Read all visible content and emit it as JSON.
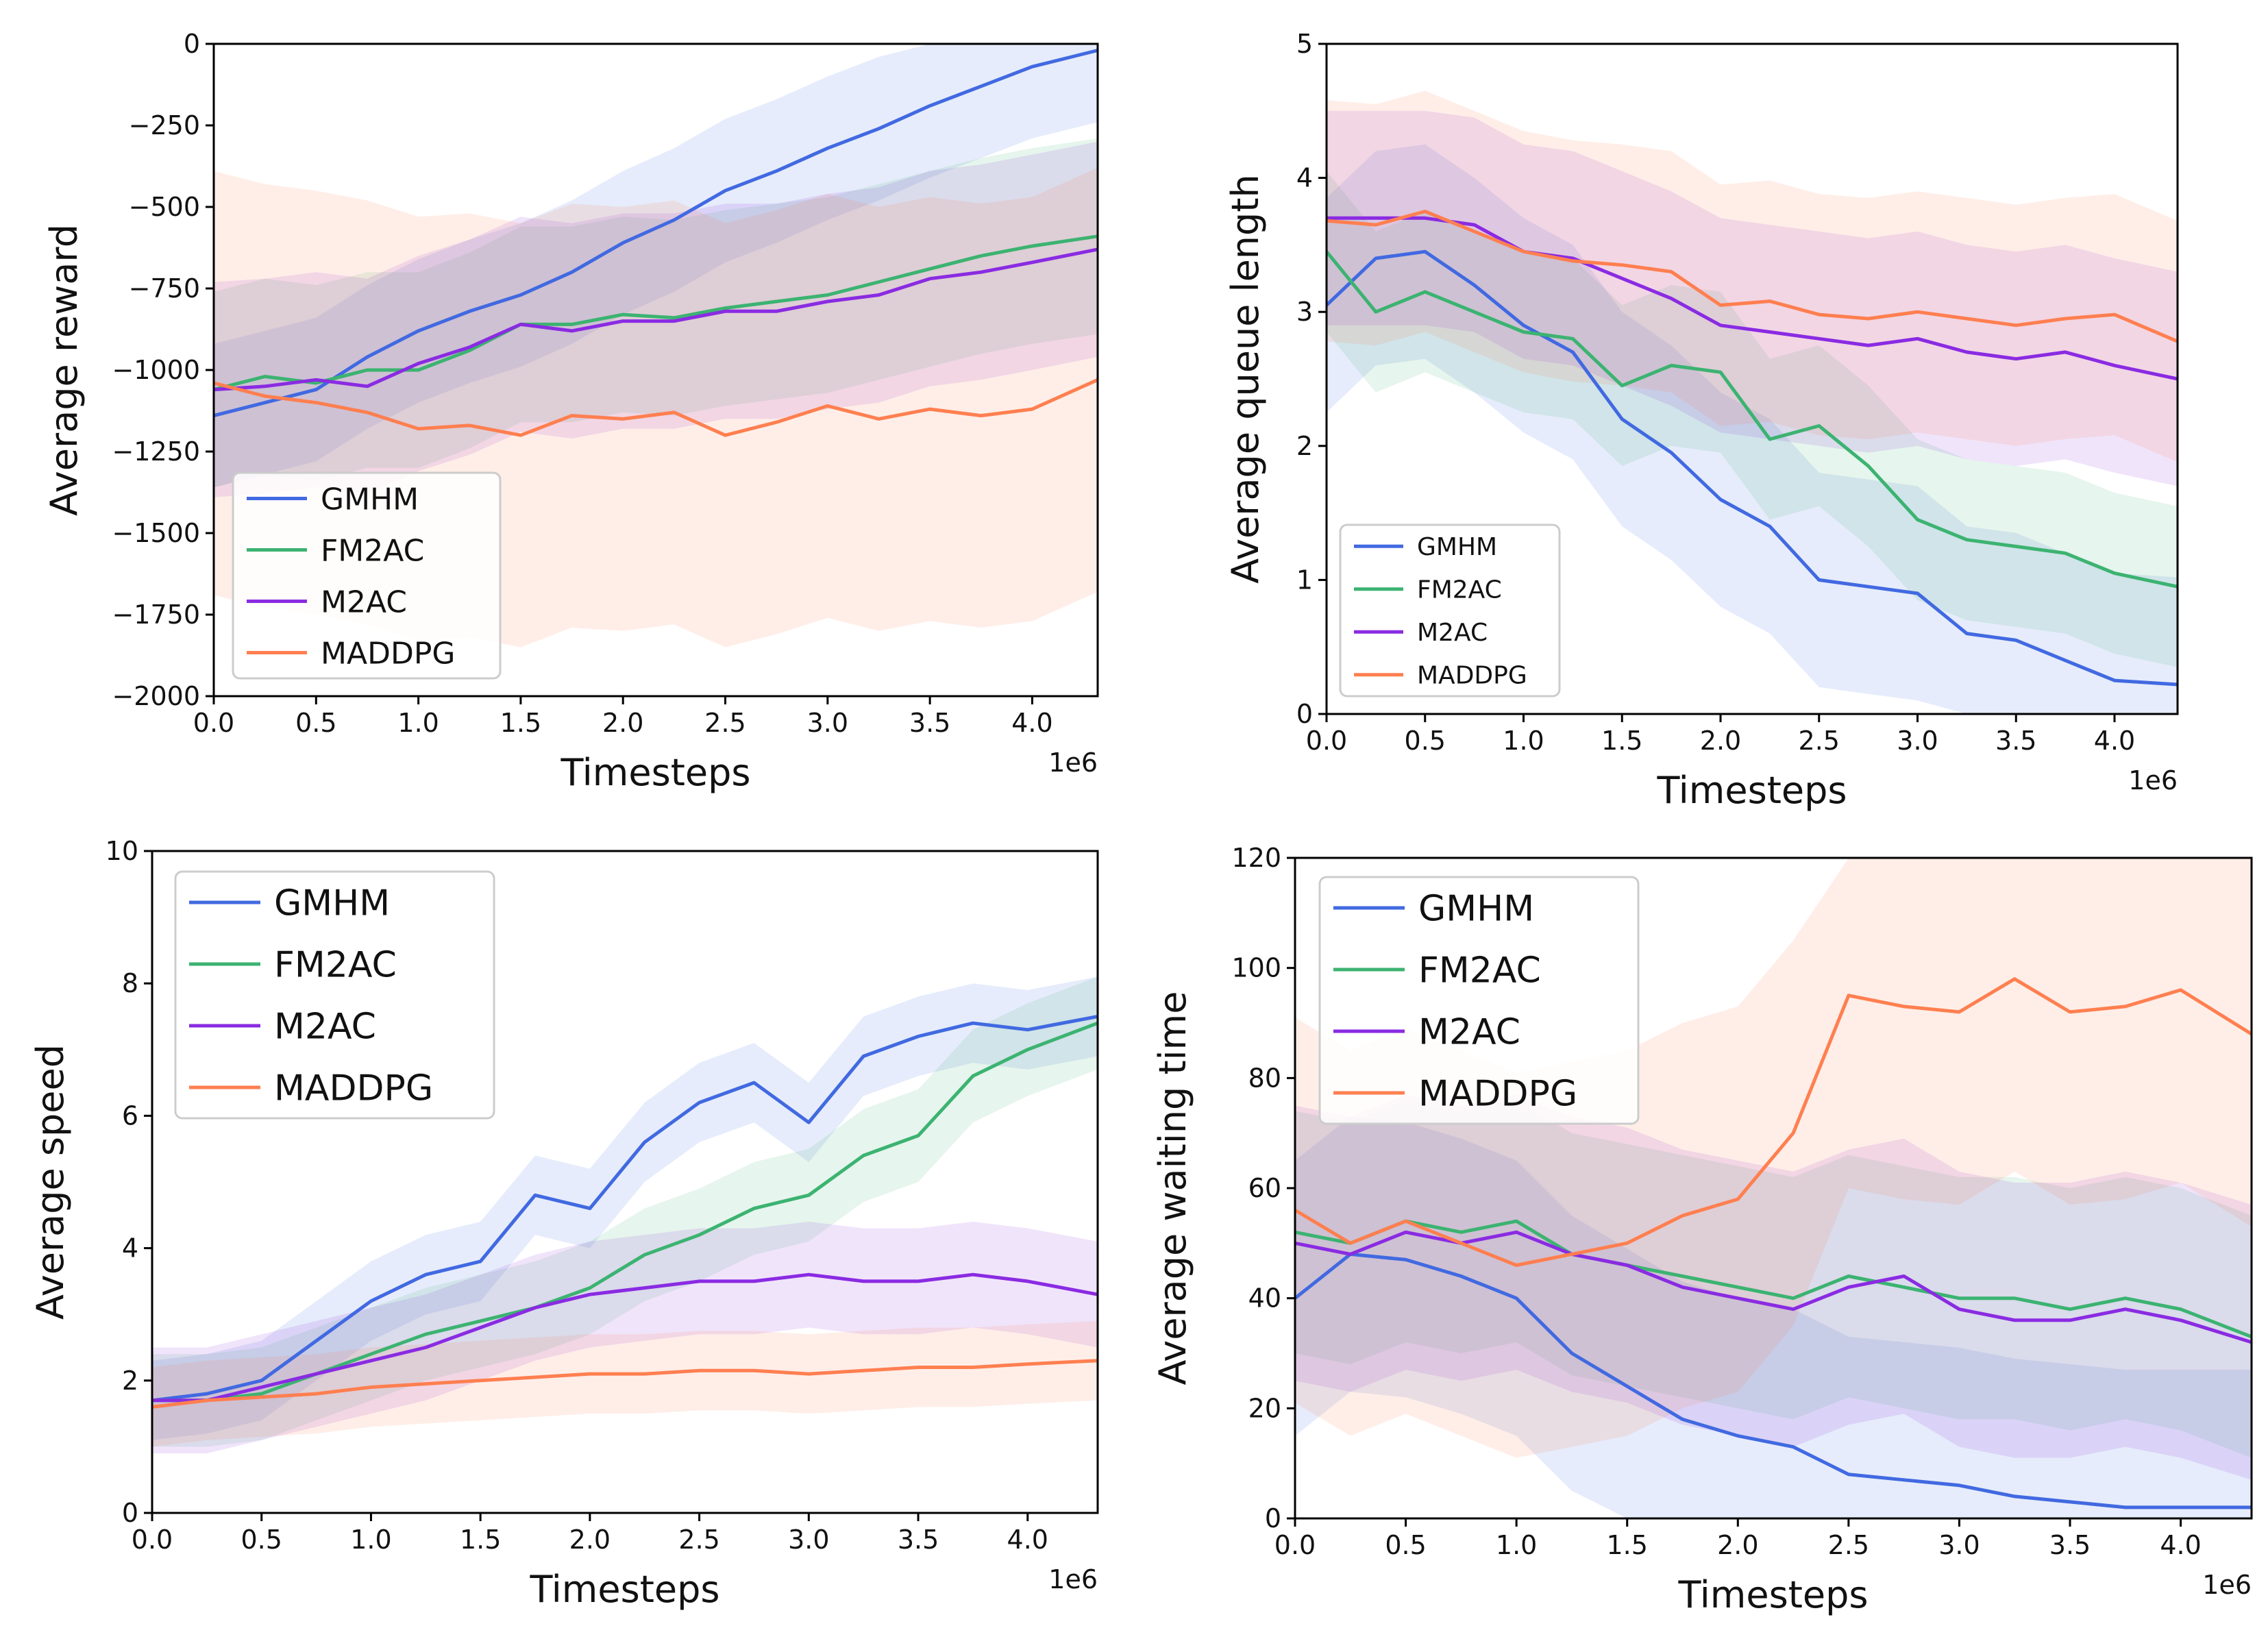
{
  "colors": {
    "GMHM": "#4169e1",
    "FM2AC": "#3cb371",
    "M2AC": "#8a2be2",
    "MADDPG": "#ff7f50"
  },
  "chart_data": [
    {
      "type": "line",
      "title": "",
      "xlabel": "Timesteps",
      "ylabel": "Average reward",
      "x_multiplier_label": "1e6",
      "xlim": [
        0,
        4.32
      ],
      "ylim": [
        -2000,
        0
      ],
      "xticks": [
        0,
        0.5,
        1.0,
        1.5,
        2.0,
        2.5,
        3.0,
        3.5,
        4.0
      ],
      "xtick_labels": [
        "0.0",
        "0.5",
        "1.0",
        "1.5",
        "2.0",
        "2.5",
        "3.0",
        "3.5",
        "4.0"
      ],
      "yticks": [
        0,
        -250,
        -500,
        -750,
        -1000,
        -1250,
        -1500,
        -1750,
        -2000
      ],
      "ytick_labels": [
        "0",
        "−250",
        "−500",
        "−750",
        "−1000",
        "−1250",
        "−1500",
        "−1750",
        "−2000"
      ],
      "legend": "bottom-left",
      "x": [
        0,
        0.25,
        0.5,
        0.75,
        1.0,
        1.25,
        1.5,
        1.75,
        2.0,
        2.25,
        2.5,
        2.75,
        3.0,
        3.25,
        3.5,
        3.75,
        4.0,
        4.32
      ],
      "series": [
        {
          "name": "GMHM",
          "values": [
            -1140,
            -1100,
            -1060,
            -960,
            -880,
            -820,
            -770,
            -700,
            -610,
            -540,
            -450,
            -390,
            -320,
            -260,
            -190,
            -130,
            -70,
            -20
          ],
          "band": 220
        },
        {
          "name": "FM2AC",
          "values": [
            -1060,
            -1020,
            -1040,
            -1000,
            -1000,
            -940,
            -860,
            -860,
            -830,
            -840,
            -810,
            -790,
            -770,
            -730,
            -690,
            -650,
            -620,
            -590
          ],
          "band": 300
        },
        {
          "name": "M2AC",
          "values": [
            -1060,
            -1050,
            -1030,
            -1050,
            -980,
            -930,
            -860,
            -880,
            -850,
            -850,
            -820,
            -820,
            -790,
            -770,
            -720,
            -700,
            -670,
            -630
          ],
          "band": 330
        },
        {
          "name": "MADDPG",
          "values": [
            -1040,
            -1080,
            -1100,
            -1130,
            -1180,
            -1170,
            -1200,
            -1140,
            -1150,
            -1130,
            -1200,
            -1160,
            -1110,
            -1150,
            -1120,
            -1140,
            -1120,
            -1030
          ],
          "band": 650
        }
      ]
    },
    {
      "type": "line",
      "title": "",
      "xlabel": "Timesteps",
      "ylabel": "Average queue length",
      "x_multiplier_label": "1e6",
      "xlim": [
        0,
        4.32
      ],
      "ylim": [
        0,
        5
      ],
      "xticks": [
        0,
        0.5,
        1.0,
        1.5,
        2.0,
        2.5,
        3.0,
        3.5,
        4.0
      ],
      "xtick_labels": [
        "0.0",
        "0.5",
        "1.0",
        "1.5",
        "2.0",
        "2.5",
        "3.0",
        "3.5",
        "4.0"
      ],
      "yticks": [
        0,
        1,
        2,
        3,
        4,
        5
      ],
      "ytick_labels": [
        "0",
        "1",
        "2",
        "3",
        "4",
        "5"
      ],
      "legend": "bottom-left",
      "x": [
        0,
        0.25,
        0.5,
        0.75,
        1.0,
        1.25,
        1.5,
        1.75,
        2.0,
        2.25,
        2.5,
        2.75,
        3.0,
        3.25,
        3.5,
        3.75,
        4.0,
        4.32
      ],
      "series": [
        {
          "name": "GMHM",
          "values": [
            3.05,
            3.4,
            3.45,
            3.2,
            2.9,
            2.7,
            2.2,
            1.95,
            1.6,
            1.4,
            1.0,
            0.95,
            0.9,
            0.6,
            0.55,
            0.4,
            0.25,
            0.22
          ],
          "band": 0.8
        },
        {
          "name": "FM2AC",
          "values": [
            3.45,
            3.0,
            3.15,
            3.0,
            2.85,
            2.8,
            2.45,
            2.6,
            2.55,
            2.05,
            2.15,
            1.85,
            1.45,
            1.3,
            1.25,
            1.2,
            1.05,
            0.95
          ],
          "band": 0.6
        },
        {
          "name": "M2AC",
          "values": [
            3.7,
            3.7,
            3.7,
            3.65,
            3.45,
            3.4,
            3.25,
            3.1,
            2.9,
            2.85,
            2.8,
            2.75,
            2.8,
            2.7,
            2.65,
            2.7,
            2.6,
            2.5
          ],
          "band": 0.8
        },
        {
          "name": "MADDPG",
          "values": [
            3.68,
            3.65,
            3.75,
            3.6,
            3.45,
            3.38,
            3.35,
            3.3,
            3.05,
            3.08,
            2.98,
            2.95,
            3.0,
            2.95,
            2.9,
            2.95,
            2.98,
            2.78
          ],
          "band": 0.9
        }
      ]
    },
    {
      "type": "line",
      "title": "",
      "xlabel": "Timesteps",
      "ylabel": "Average speed",
      "x_multiplier_label": "1e6",
      "xlim": [
        0,
        4.32
      ],
      "ylim": [
        0,
        10
      ],
      "xticks": [
        0,
        0.5,
        1.0,
        1.5,
        2.0,
        2.5,
        3.0,
        3.5,
        4.0
      ],
      "xtick_labels": [
        "0.0",
        "0.5",
        "1.0",
        "1.5",
        "2.0",
        "2.5",
        "3.0",
        "3.5",
        "4.0"
      ],
      "yticks": [
        0,
        2,
        4,
        6,
        8,
        10
      ],
      "ytick_labels": [
        "0",
        "2",
        "4",
        "6",
        "8",
        "10"
      ],
      "legend": "top-left",
      "x": [
        0,
        0.25,
        0.5,
        0.75,
        1.0,
        1.25,
        1.5,
        1.75,
        2.0,
        2.25,
        2.5,
        2.75,
        3.0,
        3.25,
        3.5,
        3.75,
        4.0,
        4.32
      ],
      "series": [
        {
          "name": "GMHM",
          "values": [
            1.7,
            1.8,
            2.0,
            2.6,
            3.2,
            3.6,
            3.8,
            4.8,
            4.6,
            5.6,
            6.2,
            6.5,
            5.9,
            6.9,
            7.2,
            7.4,
            7.3,
            7.5
          ],
          "band": 0.6
        },
        {
          "name": "FM2AC",
          "values": [
            1.7,
            1.7,
            1.8,
            2.1,
            2.4,
            2.7,
            2.9,
            3.1,
            3.4,
            3.9,
            4.2,
            4.6,
            4.8,
            5.4,
            5.7,
            6.6,
            7.0,
            7.4
          ],
          "band": 0.7
        },
        {
          "name": "M2AC",
          "values": [
            1.7,
            1.7,
            1.9,
            2.1,
            2.3,
            2.5,
            2.8,
            3.1,
            3.3,
            3.4,
            3.5,
            3.5,
            3.6,
            3.5,
            3.5,
            3.6,
            3.5,
            3.3
          ],
          "band": 0.8
        },
        {
          "name": "MADDPG",
          "values": [
            1.6,
            1.7,
            1.75,
            1.8,
            1.9,
            1.95,
            2.0,
            2.05,
            2.1,
            2.1,
            2.15,
            2.15,
            2.1,
            2.15,
            2.2,
            2.2,
            2.25,
            2.3
          ],
          "band": 0.6
        }
      ]
    },
    {
      "type": "line",
      "title": "",
      "xlabel": "Timesteps",
      "ylabel": "Average waiting time",
      "x_multiplier_label": "1e6",
      "xlim": [
        0,
        4.32
      ],
      "ylim": [
        0,
        120
      ],
      "xticks": [
        0,
        0.5,
        1.0,
        1.5,
        2.0,
        2.5,
        3.0,
        3.5,
        4.0
      ],
      "xtick_labels": [
        "0.0",
        "0.5",
        "1.0",
        "1.5",
        "2.0",
        "2.5",
        "3.0",
        "3.5",
        "4.0"
      ],
      "yticks": [
        0,
        20,
        40,
        60,
        80,
        100,
        120
      ],
      "ytick_labels": [
        "0",
        "20",
        "40",
        "60",
        "80",
        "100",
        "120"
      ],
      "legend": "top-left",
      "x": [
        0,
        0.25,
        0.5,
        0.75,
        1.0,
        1.25,
        1.5,
        1.75,
        2.0,
        2.25,
        2.5,
        2.75,
        3.0,
        3.25,
        3.5,
        3.75,
        4.0,
        4.32
      ],
      "series": [
        {
          "name": "GMHM",
          "values": [
            40,
            48,
            47,
            44,
            40,
            30,
            24,
            18,
            15,
            13,
            8,
            7,
            6,
            4,
            3,
            2,
            2,
            2
          ],
          "band": 25
        },
        {
          "name": "FM2AC",
          "values": [
            52,
            50,
            54,
            52,
            54,
            48,
            46,
            44,
            42,
            40,
            44,
            42,
            40,
            40,
            38,
            40,
            38,
            33
          ],
          "band": 22
        },
        {
          "name": "M2AC",
          "values": [
            50,
            48,
            52,
            50,
            52,
            48,
            46,
            42,
            40,
            38,
            42,
            44,
            38,
            36,
            36,
            38,
            36,
            32
          ],
          "band": 25
        },
        {
          "name": "MADDPG",
          "values": [
            56,
            50,
            54,
            50,
            46,
            48,
            50,
            55,
            58,
            70,
            95,
            93,
            92,
            98,
            92,
            93,
            96,
            88
          ],
          "band": 35
        }
      ]
    }
  ]
}
